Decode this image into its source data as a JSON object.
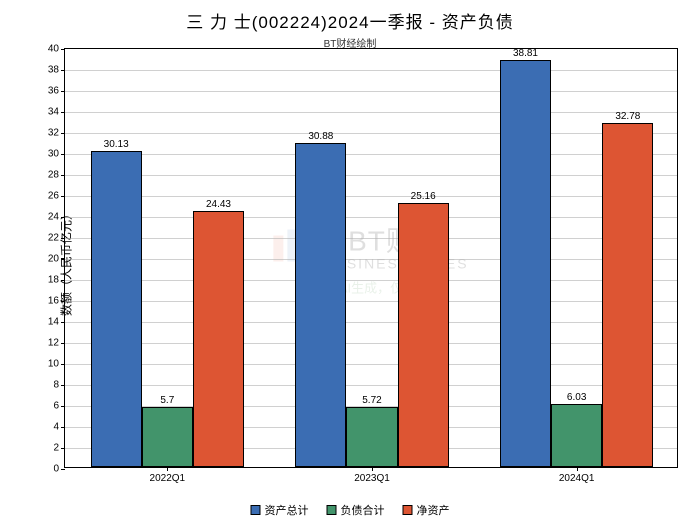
{
  "chart": {
    "type": "bar",
    "title": "三 力 士(002224)2024一季报 - 资产负债",
    "subtitle": "BT财经绘制",
    "y_axis_label": "数额（人民币亿元）",
    "categories": [
      "2022Q1",
      "2023Q1",
      "2024Q1"
    ],
    "series": [
      {
        "name": "资产总计",
        "color": "#3b6db3",
        "values": [
          30.13,
          30.88,
          38.81
        ]
      },
      {
        "name": "负债合计",
        "color": "#42946b",
        "values": [
          5.7,
          5.72,
          6.03
        ]
      },
      {
        "name": "净资产",
        "color": "#dd5533",
        "values": [
          24.43,
          25.16,
          32.78
        ]
      }
    ],
    "ylim": [
      0,
      40
    ],
    "ytick_step": 2,
    "bar_width_ratio": 0.25,
    "group_gap_ratio": 0.1,
    "background_color": "#ffffff",
    "grid_color": "#b0b0b0",
    "border_color": "#000000",
    "title_fontsize": 17,
    "subtitle_fontsize": 10,
    "label_fontsize": 12,
    "tick_fontsize": 10,
    "value_label_fontsize": 10
  },
  "watermark": {
    "brand_cn": "BT财经",
    "brand_en": "BUSINESS TIMES",
    "note": "内容由AI生成，仅供参考"
  }
}
